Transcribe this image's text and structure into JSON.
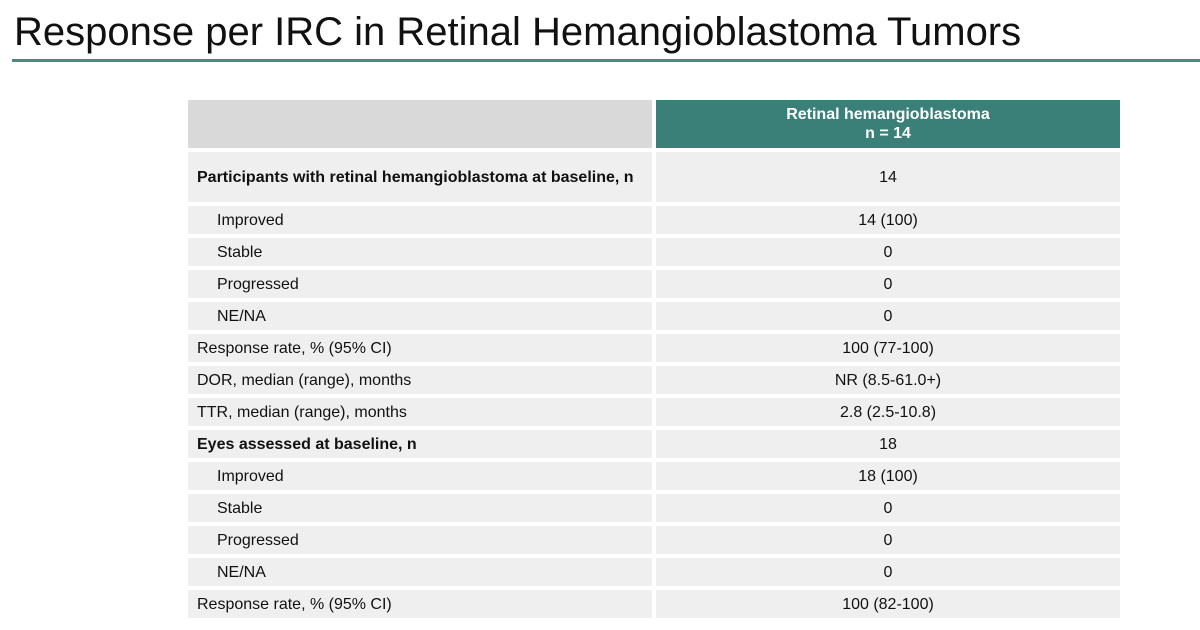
{
  "title": "Response per IRC in Retinal Hemangioblastoma Tumors",
  "table": {
    "header": {
      "column": [
        "Retinal hemangioblastoma",
        "n = 14"
      ]
    },
    "rows": [
      {
        "label": "Participants with retinal hemangioblastoma at baseline, n",
        "value": "14"
      },
      {
        "label": "Improved",
        "value": "14 (100)"
      },
      {
        "label": "Stable",
        "value": "0"
      },
      {
        "label": "Progressed",
        "value": "0"
      },
      {
        "label": "NE/NA",
        "value": "0"
      },
      {
        "label": "Response rate, % (95% CI)",
        "value": "100 (77-100)"
      },
      {
        "label": "DOR, median (range), months",
        "value": "NR (8.5-61.0+)"
      },
      {
        "label": "TTR, median (range), months",
        "value": "2.8 (2.5-10.8)"
      },
      {
        "label": "Eyes assessed at baseline, n",
        "value": "18"
      },
      {
        "label": "Improved",
        "value": "18 (100)"
      },
      {
        "label": "Stable",
        "value": "0"
      },
      {
        "label": "Progressed",
        "value": "0"
      },
      {
        "label": "NE/NA",
        "value": "0"
      },
      {
        "label": "Response rate, % (95% CI)",
        "value": "100 (82-100)"
      }
    ]
  }
}
